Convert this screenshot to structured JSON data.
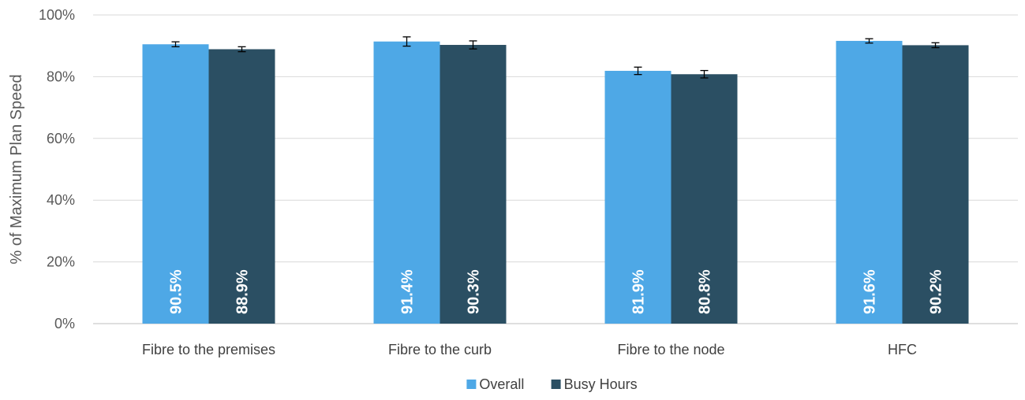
{
  "chart_data": {
    "type": "bar",
    "title": "",
    "xlabel": "",
    "ylabel": "% of Maximum Plan Speed",
    "ylim": [
      0,
      100
    ],
    "y_ticks": [
      "0%",
      "20%",
      "40%",
      "60%",
      "80%",
      "100%"
    ],
    "y_tick_values": [
      0,
      20,
      40,
      60,
      80,
      100
    ],
    "grid": true,
    "legend_position": "bottom",
    "categories": [
      "Fibre to the premises",
      "Fibre to the curb",
      "Fibre to the node",
      "HFC"
    ],
    "series": [
      {
        "name": "Overall",
        "color": "#4ea8e6",
        "values": [
          90.5,
          91.4,
          81.9,
          91.6
        ],
        "labels": [
          "90.5%",
          "91.4%",
          "81.9%",
          "91.6%"
        ],
        "error": [
          0.8,
          1.5,
          1.2,
          0.7
        ]
      },
      {
        "name": "Busy Hours",
        "color": "#2b4f63",
        "values": [
          88.9,
          90.3,
          80.8,
          90.2
        ],
        "labels": [
          "88.9%",
          "90.3%",
          "80.8%",
          "90.2%"
        ],
        "error": [
          0.8,
          1.3,
          1.2,
          0.8
        ]
      }
    ],
    "colors": {
      "grid": "#d9d9d9",
      "axis": "#bfbfbf",
      "error_bar": "#000000"
    }
  }
}
